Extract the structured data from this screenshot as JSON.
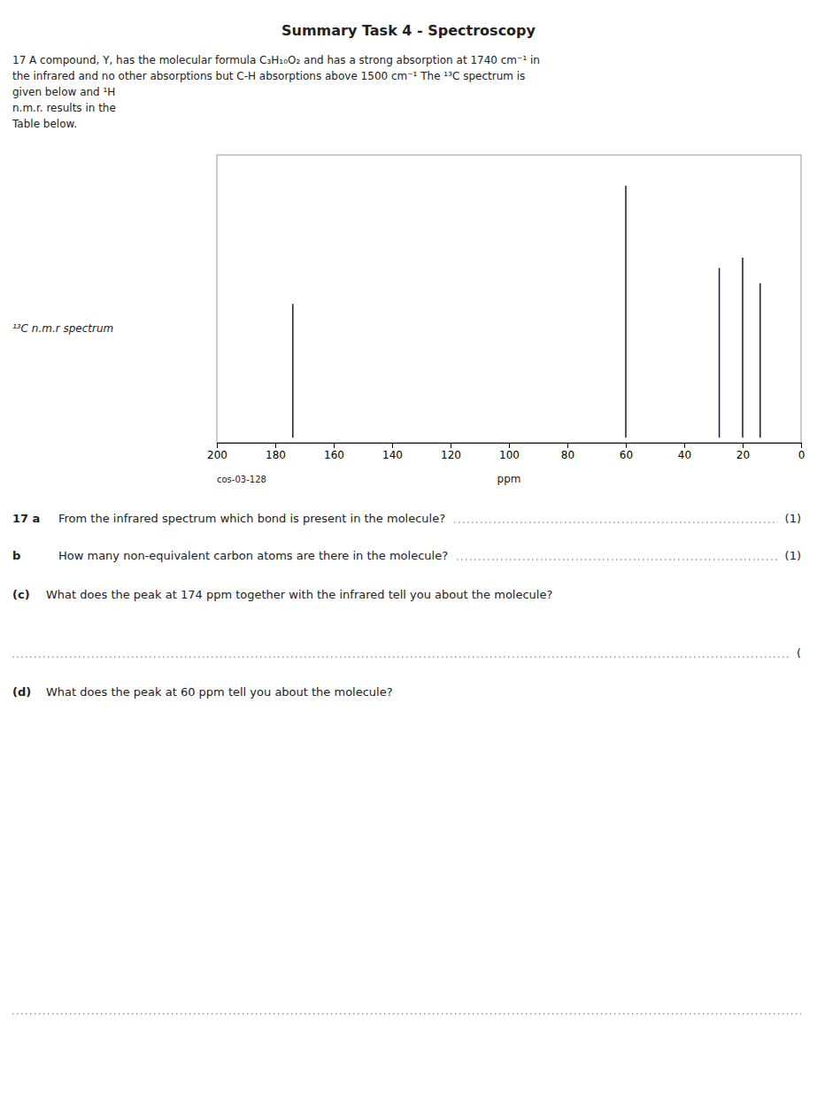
{
  "chart_data": {
    "type": "stem",
    "title": "Summary Task 4 - Spectroscopy",
    "subtitle": "17 A compound, Y, has the molecular formula C₃H₁₀O₂ and has a strong absorption at 1740 cm⁻¹ in\nthe infrared and no other absorptions but C-H absorptions above 1500 cm⁻¹  The ¹³C spectrum is\ngiven below and ¹H\nn.m.r. results in the\nTable below.",
    "x": [
      174,
      60,
      28,
      20,
      14
    ],
    "values": [
      0.52,
      0.98,
      0.66,
      0.7,
      0.6
    ],
    "color": "#1a1a2e",
    "xlim": [
      200,
      0
    ],
    "ylim": [
      -0.02,
      1.1
    ],
    "xticks": [
      200,
      180,
      160,
      140,
      120,
      100,
      80,
      60,
      40,
      20,
      0
    ],
    "tick_labels": "x",
    "xlabel": "ppm",
    "annotations": [
      "¹³C n.m.r spectrum",
      "cos-03-128",
      "17 a",
      "From the infrared spectrum which bond is present in the molecule?",
      "(1)",
      "b",
      "How many non-equivalent carbon atoms are there in the molecule?",
      "(1)",
      "(c)",
      "What does the peak at 174 ppm together with the infrared tell you about the molecule?",
      "(",
      "(d)",
      "What does the peak at 60 ppm tell you about the molecule?"
    ]
  }
}
